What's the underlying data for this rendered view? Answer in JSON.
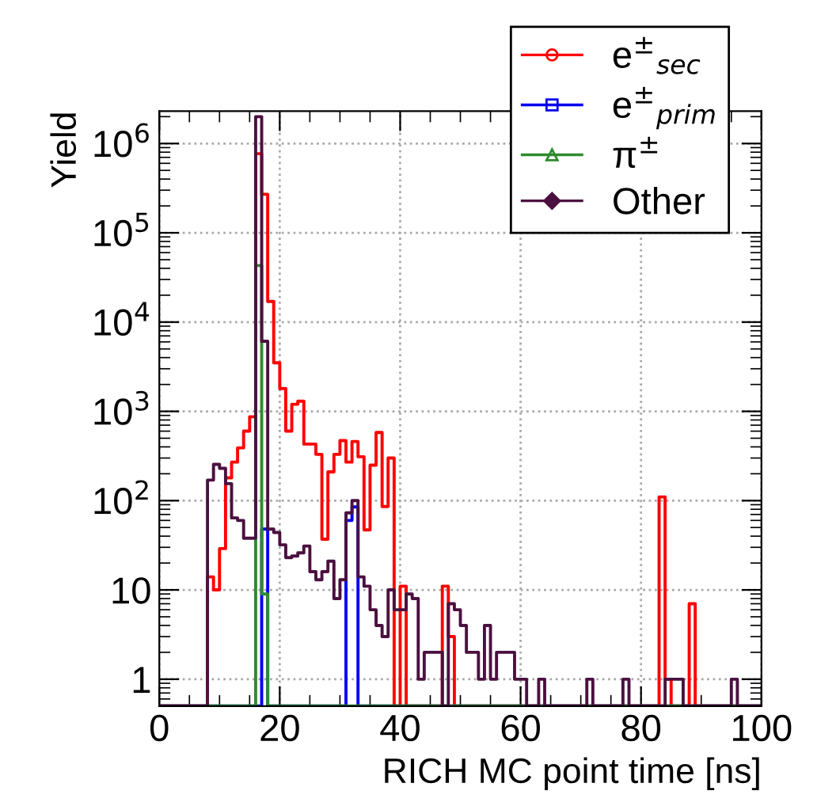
{
  "chart_data": {
    "type": "histogram",
    "xlabel": "RICH MC point time [ns]",
    "ylabel": "Yield",
    "bins": [
      0,
      1,
      2,
      3,
      4,
      5,
      6,
      7,
      8,
      9,
      10,
      11,
      12,
      13,
      14,
      15,
      16,
      17,
      18,
      19,
      20,
      21,
      22,
      23,
      24,
      25,
      26,
      27,
      28,
      29,
      30,
      31,
      32,
      33,
      34,
      35,
      36,
      37,
      38,
      39,
      40,
      41,
      42,
      43,
      44,
      45,
      46,
      47,
      48,
      49,
      50,
      51,
      52,
      53,
      54,
      55,
      56,
      57,
      58,
      59,
      60,
      61,
      62,
      63,
      64,
      65,
      66,
      67,
      68,
      69,
      70,
      71,
      72,
      73,
      74,
      75,
      76,
      77,
      78,
      79,
      80,
      81,
      82,
      83,
      84,
      85,
      86,
      87,
      88,
      89,
      90,
      91,
      92,
      93,
      94,
      95,
      96,
      97,
      98,
      99,
      100
    ],
    "series": [
      {
        "name": "e$^{±}$$_{sec}$",
        "color": "#ff0000",
        "marker": "circle",
        "values": [
          null,
          null,
          null,
          null,
          null,
          null,
          null,
          null,
          14,
          10,
          29,
          180,
          270,
          390,
          600,
          870,
          770000,
          270000,
          17000,
          3500,
          1800,
          600,
          1200,
          1300,
          430,
          430,
          330,
          37,
          210,
          330,
          470,
          270,
          460,
          310,
          47,
          250,
          580,
          86,
          300,
          null,
          11,
          null,
          null,
          null,
          null,
          null,
          null,
          11,
          3,
          null,
          null,
          null,
          null,
          null,
          null,
          null,
          null,
          null,
          null,
          null,
          null,
          null,
          null,
          null,
          null,
          null,
          null,
          null,
          null,
          null,
          null,
          null,
          null,
          null,
          null,
          null,
          null,
          null,
          null,
          null,
          null,
          null,
          null,
          110,
          1,
          null,
          null,
          null,
          7,
          null,
          null,
          null,
          null,
          null,
          null,
          null,
          null,
          null,
          null,
          null
        ]
      },
      {
        "name": "e$^{±}$$_{prim}$",
        "color": "#0000ee",
        "marker": "square",
        "values": [
          null,
          null,
          null,
          null,
          null,
          null,
          null,
          null,
          null,
          null,
          null,
          null,
          null,
          null,
          null,
          null,
          null,
          48,
          null,
          null,
          null,
          null,
          null,
          null,
          null,
          null,
          null,
          null,
          null,
          null,
          null,
          60,
          85,
          null,
          null,
          null,
          null,
          null,
          null,
          null,
          null,
          null,
          null,
          null,
          null,
          null,
          null,
          null,
          null,
          null,
          null,
          null,
          null,
          null,
          null,
          null,
          null,
          null,
          null,
          null,
          null,
          null,
          null,
          null,
          null,
          null,
          null,
          null,
          null,
          null,
          null,
          null,
          null,
          null,
          null,
          null,
          null,
          null,
          null,
          null,
          null,
          null,
          null,
          null,
          null,
          null,
          null,
          null,
          null,
          null,
          null,
          null,
          null,
          null,
          null,
          null,
          null,
          null,
          null,
          null
        ]
      },
      {
        "name": "π$^{±}$",
        "color": "#2e8b2e",
        "marker": "triangle",
        "values": [
          null,
          null,
          null,
          null,
          null,
          null,
          null,
          null,
          null,
          null,
          null,
          null,
          null,
          null,
          null,
          null,
          43000,
          9,
          null,
          null,
          null,
          null,
          null,
          null,
          null,
          null,
          null,
          null,
          null,
          null,
          null,
          null,
          null,
          null,
          null,
          null,
          null,
          null,
          null,
          null,
          null,
          null,
          null,
          null,
          null,
          null,
          null,
          null,
          null,
          null,
          null,
          null,
          null,
          null,
          null,
          null,
          null,
          null,
          null,
          null,
          null,
          null,
          null,
          null,
          null,
          null,
          null,
          null,
          null,
          null,
          null,
          null,
          null,
          null,
          null,
          null,
          null,
          null,
          null,
          null,
          null,
          null,
          null,
          null,
          null,
          null,
          null,
          null,
          null,
          null,
          null,
          null,
          null,
          null,
          null,
          null,
          null,
          null,
          null,
          null
        ]
      },
      {
        "name": "Other",
        "color": "#4b1040",
        "marker": "diamond",
        "values": [
          null,
          null,
          null,
          null,
          null,
          null,
          null,
          null,
          170,
          255,
          230,
          155,
          64,
          60,
          38,
          38,
          2000000,
          6100,
          48,
          44,
          32,
          23,
          24,
          26,
          31,
          16,
          13,
          16,
          21,
          8,
          13,
          73,
          100,
          14,
          11,
          6,
          4,
          3,
          10,
          6,
          6,
          9,
          8,
          1,
          2,
          2,
          2,
          null,
          7,
          6,
          4,
          2,
          2,
          1,
          4,
          1,
          2,
          2,
          2,
          1,
          1,
          null,
          null,
          1,
          null,
          null,
          null,
          null,
          null,
          null,
          null,
          1,
          null,
          null,
          null,
          null,
          null,
          1,
          null,
          null,
          null,
          null,
          null,
          null,
          1,
          1,
          1,
          null,
          null,
          null,
          null,
          null,
          null,
          null,
          null,
          1,
          null,
          null,
          null,
          null
        ]
      }
    ],
    "log": "y",
    "xlim": [
      0,
      100
    ],
    "xticks": [
      0,
      20,
      40,
      60,
      80,
      100
    ],
    "ylim": [
      0.5,
      2300000
    ],
    "yticks": [
      1,
      10,
      {
        "value": 100,
        "label": "10$^{2}$"
      },
      {
        "value": 1000,
        "label": "10$^{3}$"
      },
      {
        "value": 10000,
        "label": "10$^{4}$"
      },
      {
        "value": 100000,
        "label": "10$^{5}$"
      },
      {
        "value": 1000000,
        "label": "10$^{6}$"
      }
    ],
    "grid": true,
    "legend": "top right"
  }
}
